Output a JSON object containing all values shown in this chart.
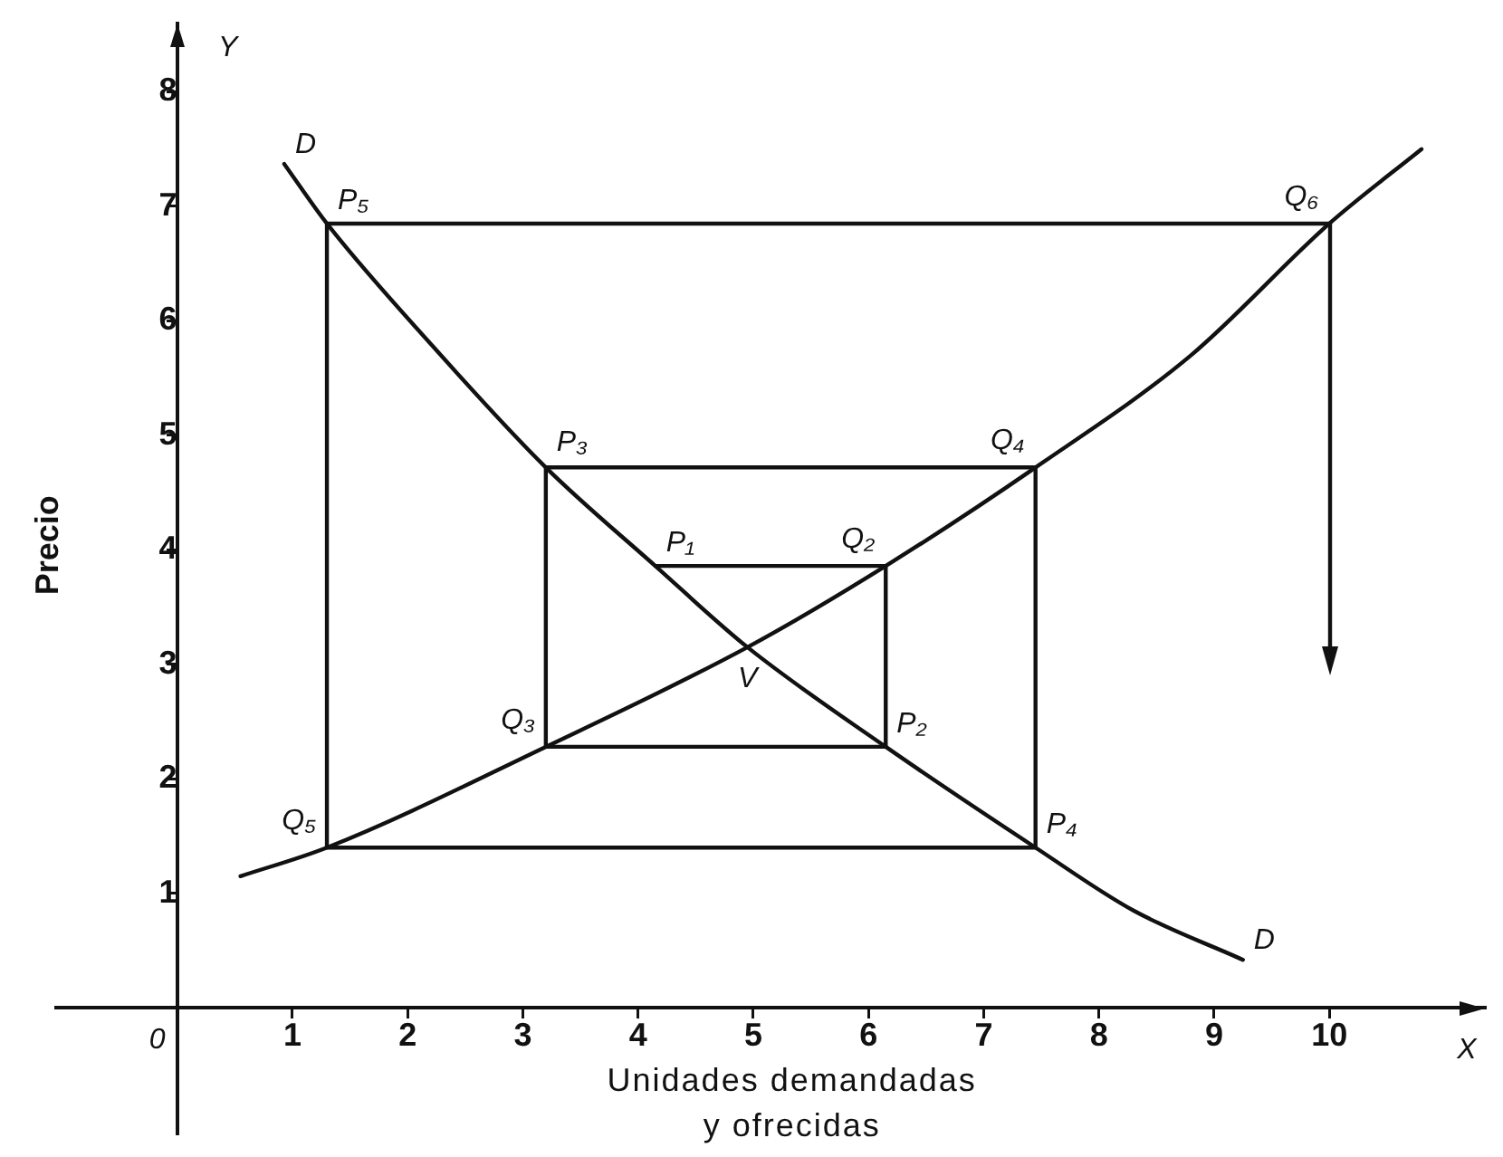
{
  "chart_data": {
    "type": "line",
    "xlabel": "Unidades demandadas\ny ofrecidas",
    "ylabel": "Precio",
    "xlim": [
      -1.05,
      11.35
    ],
    "ylim": [
      -1.1,
      8.6
    ],
    "xticks": [
      1,
      2,
      3,
      4,
      5,
      6,
      7,
      8,
      9,
      10
    ],
    "yticks": [
      1,
      2,
      3,
      4,
      5,
      6,
      7,
      8
    ],
    "series": [
      {
        "color": "#111111",
        "x": [
          0.93,
          1.3,
          2.2,
          3.2,
          4.15,
          4.95,
          6.15,
          7.45,
          8.3,
          9.25
        ],
        "values": [
          7.37,
          6.85,
          5.8,
          4.72,
          3.86,
          3.15,
          2.28,
          1.4,
          0.85,
          0.42
        ]
      },
      {
        "color": "#111111",
        "x": [
          0.55,
          1.3,
          3.2,
          4.95,
          6.15,
          7.45,
          8.8,
          10,
          10.8
        ],
        "values": [
          1.15,
          1.4,
          2.28,
          3.15,
          3.86,
          4.72,
          5.7,
          6.85,
          7.5
        ]
      },
      {
        "color": "#111111",
        "x": [
          4.15,
          6.15,
          6.15,
          3.2,
          3.2,
          7.45,
          7.45,
          1.3,
          1.3,
          10
        ],
        "values": [
          3.86,
          3.86,
          2.28,
          2.28,
          4.72,
          4.72,
          1.4,
          1.4,
          6.85,
          6.85
        ]
      }
    ],
    "annotations": [
      {
        "text": "D",
        "x": 0.93,
        "y": 7.37
      },
      {
        "text": "P₅",
        "x": 1.3,
        "y": 6.85
      },
      {
        "text": "Q₆",
        "x": 10,
        "y": 6.85
      },
      {
        "text": "P₃",
        "x": 3.2,
        "y": 4.72
      },
      {
        "text": "Q₄",
        "x": 7.45,
        "y": 4.72
      },
      {
        "text": "P₁",
        "x": 4.15,
        "y": 3.86
      },
      {
        "text": "Q₂",
        "x": 6.15,
        "y": 3.86
      },
      {
        "text": "V",
        "x": 4.95,
        "y": 3.15
      },
      {
        "text": "Q₃",
        "x": 3.2,
        "y": 2.28
      },
      {
        "text": "P₂",
        "x": 6.15,
        "y": 2.28
      },
      {
        "text": "Q₅",
        "x": 1.3,
        "y": 1.4
      },
      {
        "text": "P₄",
        "x": 7.45,
        "y": 1.4
      },
      {
        "text": "D",
        "x": 9.25,
        "y": 0.42
      },
      "Y",
      "0",
      "X"
    ]
  }
}
